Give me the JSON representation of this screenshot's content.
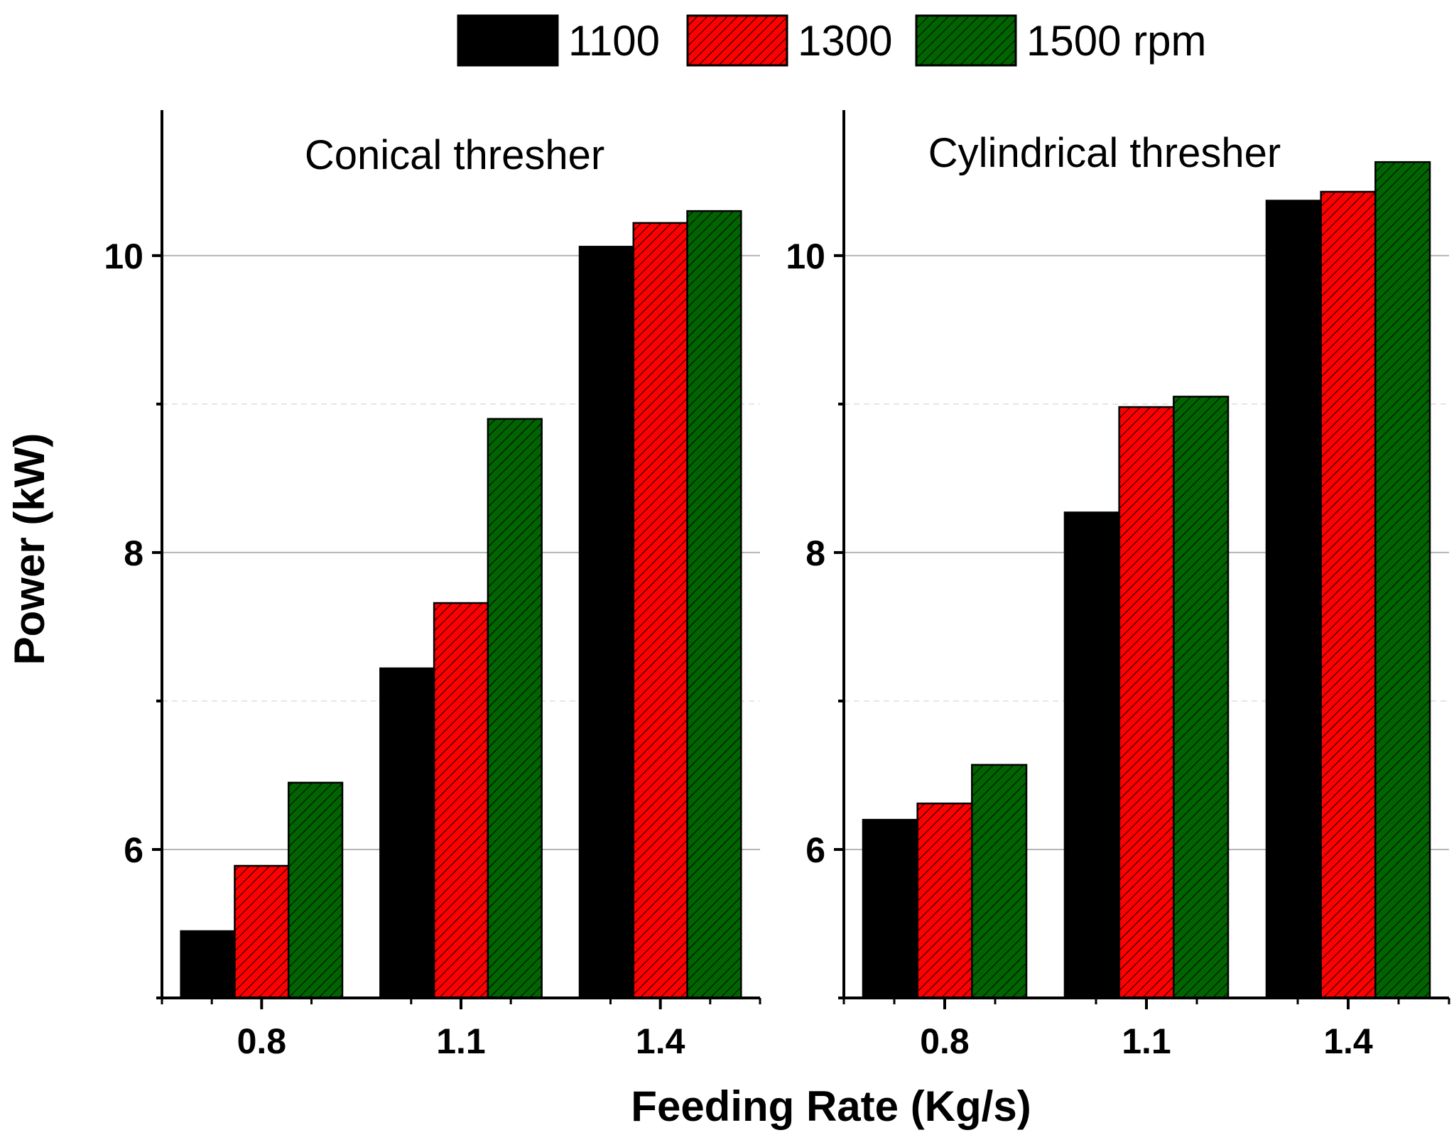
{
  "legend": {
    "entries": [
      "1100",
      "1300",
      "1500 rpm"
    ],
    "placement": "top-center"
  },
  "axes": {
    "ylabel": "Power (kW)",
    "xlabel": "Feeding Rate (Kg/s)",
    "ylim": [
      5,
      10.98
    ],
    "yticks": [
      "6",
      "8",
      "10"
    ],
    "grid": "horizontal"
  },
  "colors": {
    "1100": "#000000",
    "1300": "#ff0000",
    "1500 rpm": "#006400"
  },
  "chart_data": [
    {
      "type": "bar",
      "title": "Conical thresher",
      "categories": [
        "0.8",
        "1.1",
        "1.4"
      ],
      "series": [
        {
          "name": "1100",
          "values": [
            5.45,
            7.22,
            10.06
          ]
        },
        {
          "name": "1300",
          "values": [
            5.89,
            7.66,
            10.22
          ]
        },
        {
          "name": "1500 rpm",
          "values": [
            6.45,
            8.9,
            10.3
          ]
        }
      ],
      "ylim": [
        5,
        10.98
      ]
    },
    {
      "type": "bar",
      "title": "Cylindrical thresher",
      "categories": [
        "0.8",
        "1.1",
        "1.4"
      ],
      "series": [
        {
          "name": "1100",
          "values": [
            6.2,
            8.27,
            10.37
          ]
        },
        {
          "name": "1300",
          "values": [
            6.31,
            8.98,
            10.43
          ]
        },
        {
          "name": "1500 rpm",
          "values": [
            6.57,
            9.05,
            10.63
          ]
        }
      ],
      "ylim": [
        5,
        10.98
      ]
    }
  ]
}
